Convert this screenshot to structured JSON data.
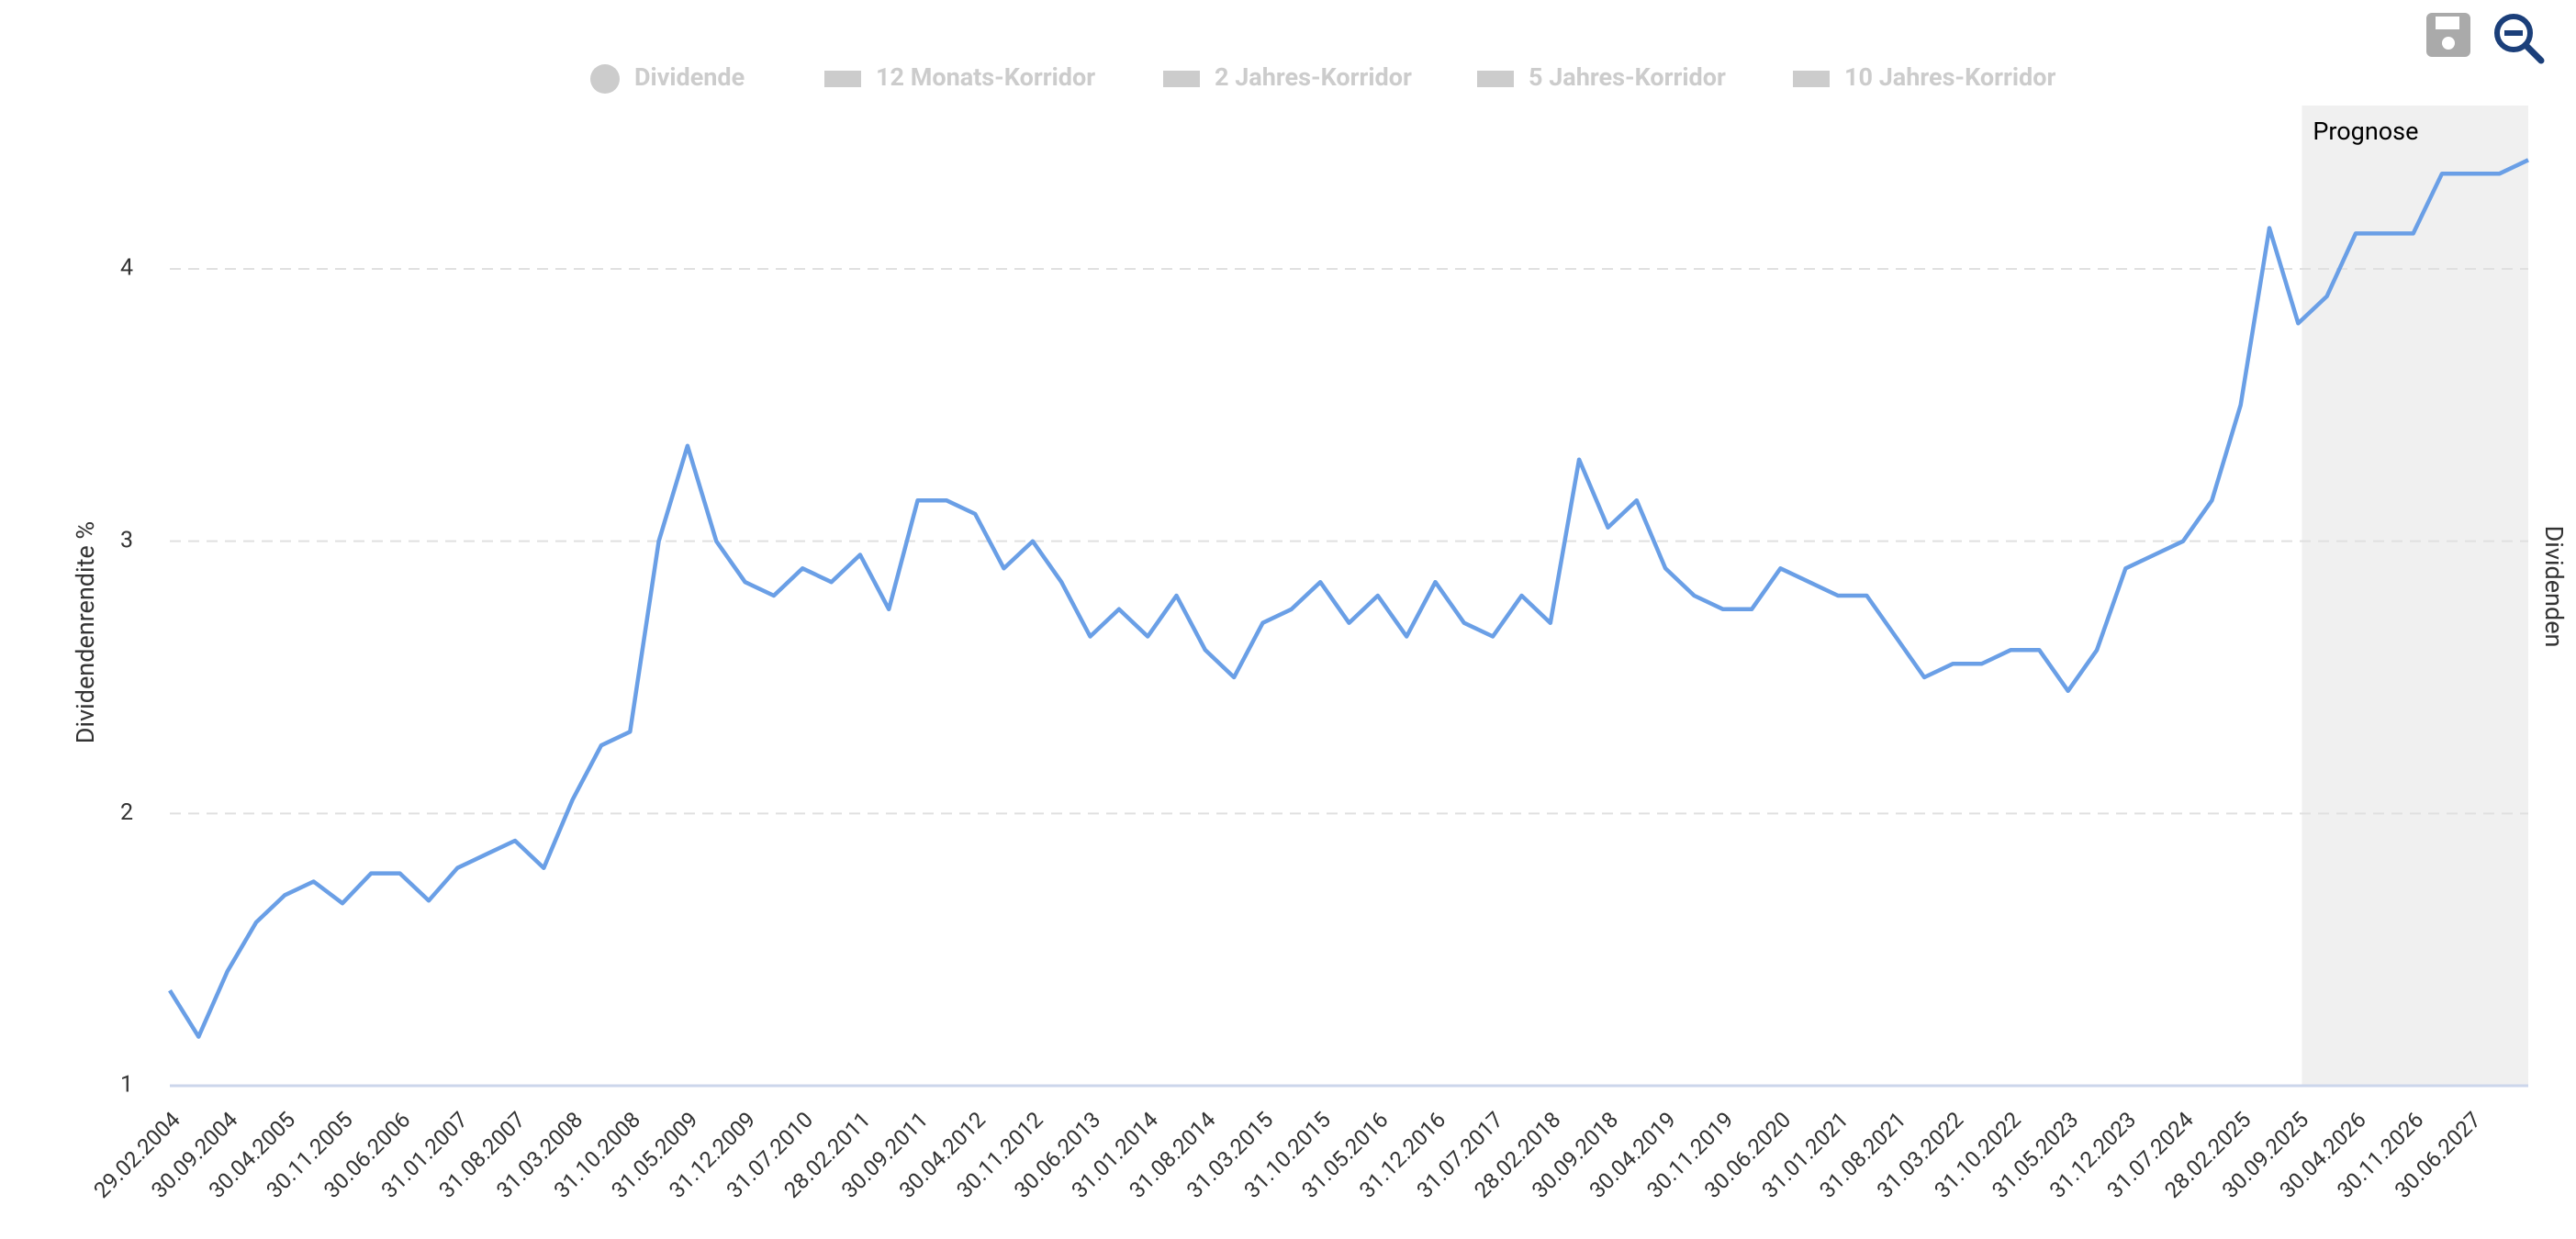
{
  "chart_data": {
    "type": "line",
    "y_axis_title": "Dividendenrendite %",
    "y2_axis_title": "Dividenden",
    "legend": [
      {
        "name": "Dividende",
        "symbol": "circle"
      },
      {
        "name": "12 Monats-Korridor",
        "symbol": "bar"
      },
      {
        "name": "2 Jahres-Korridor",
        "symbol": "bar"
      },
      {
        "name": "5 Jahres-Korridor",
        "symbol": "bar"
      },
      {
        "name": "10 Jahres-Korridor",
        "symbol": "bar"
      }
    ],
    "forecast": {
      "label": "Prognose",
      "from": "30.09.2025"
    },
    "categories": [
      "29.02.2004",
      null,
      "30.09.2004",
      null,
      "30.04.2005",
      null,
      "30.11.2005",
      null,
      "30.06.2006",
      null,
      "31.01.2007",
      null,
      "31.08.2007",
      null,
      "31.03.2008",
      null,
      "31.10.2008",
      null,
      "31.05.2009",
      null,
      "31.12.2009",
      null,
      "31.07.2010",
      null,
      "28.02.2011",
      null,
      "30.09.2011",
      null,
      "30.04.2012",
      null,
      "30.11.2012",
      null,
      "30.06.2013",
      null,
      "31.01.2014",
      null,
      "31.08.2014",
      null,
      "31.03.2015",
      null,
      "31.10.2015",
      null,
      "31.05.2016",
      null,
      "31.12.2016",
      null,
      "31.07.2017",
      null,
      "28.02.2018",
      null,
      "30.09.2018",
      null,
      "30.04.2019",
      null,
      "30.11.2019",
      null,
      "30.06.2020",
      null,
      "31.01.2021",
      null,
      "31.08.2021",
      null,
      "31.03.2022",
      null,
      "31.10.2022",
      null,
      "31.05.2023",
      null,
      "31.12.2023",
      null,
      "31.07.2024",
      null,
      "28.02.2025",
      null,
      "30.09.2025",
      null,
      "30.04.2026",
      null,
      "30.11.2026",
      null,
      "30.06.2027",
      null,
      null
    ],
    "series": [
      {
        "name": "Dividendenrendite",
        "color": "#6a9fe6",
        "values": [
          1.35,
          1.18,
          1.42,
          1.6,
          1.7,
          1.75,
          1.67,
          1.78,
          1.78,
          1.68,
          1.8,
          1.85,
          1.9,
          1.8,
          2.05,
          2.25,
          2.3,
          3.0,
          3.35,
          3.0,
          2.85,
          2.8,
          2.9,
          2.85,
          2.95,
          2.75,
          3.15,
          3.15,
          3.1,
          2.9,
          3.0,
          2.85,
          2.65,
          2.75,
          2.65,
          2.8,
          2.6,
          2.5,
          2.7,
          2.75,
          2.85,
          2.7,
          2.8,
          2.65,
          2.85,
          2.7,
          2.65,
          2.8,
          2.7,
          3.3,
          3.05,
          3.15,
          2.9,
          2.8,
          2.75,
          2.75,
          2.9,
          2.85,
          2.8,
          2.8,
          2.65,
          2.5,
          2.55,
          2.55,
          2.6,
          2.6,
          2.45,
          2.6,
          2.9,
          2.95,
          3.0,
          3.15,
          3.5,
          4.15,
          3.8,
          3.9,
          4.13,
          4.13,
          4.13,
          4.35,
          4.35,
          4.35,
          4.4
        ]
      }
    ],
    "ylim": [
      1,
      4.6
    ],
    "yticks": [
      1,
      2,
      3,
      4
    ],
    "grid": true
  }
}
